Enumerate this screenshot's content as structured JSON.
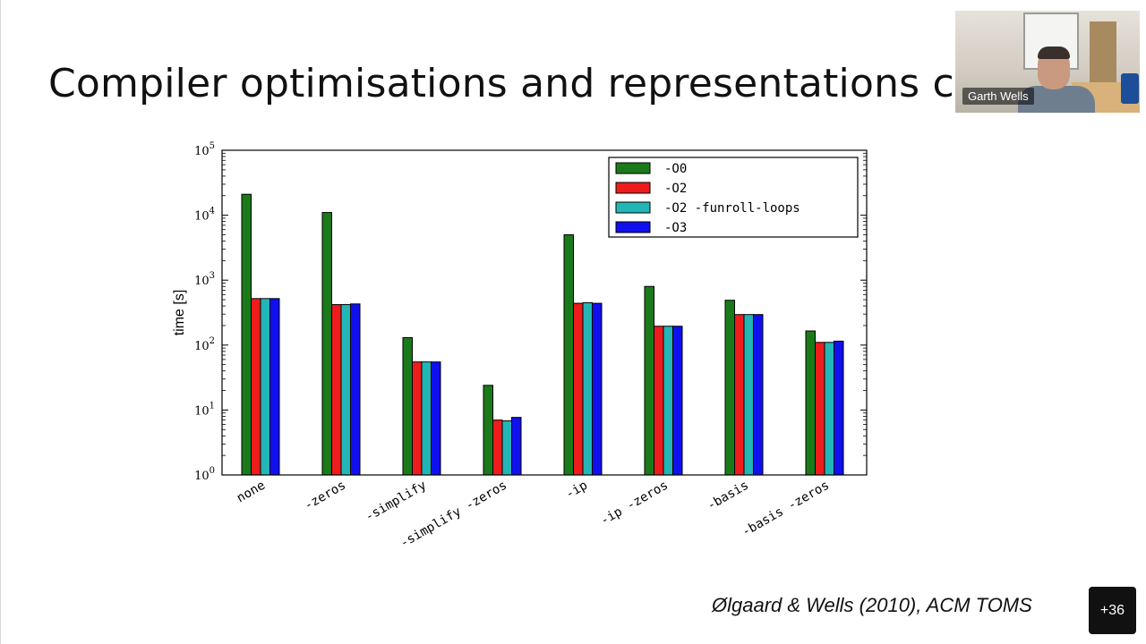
{
  "slide": {
    "title": "Compiler optimisations and representations circ",
    "citation": "Ølgaard & Wells (2010), ACM TOMS"
  },
  "video": {
    "participant_name": "Garth Wells"
  },
  "participants_button": {
    "label": "+36"
  },
  "chart_data": {
    "type": "bar",
    "yscale": "log",
    "ylabel": "time [s]",
    "xlabel": "",
    "ylim": [
      1,
      100000
    ],
    "ytick_labels": [
      {
        "base": "10",
        "exp": "0"
      },
      {
        "base": "10",
        "exp": "1"
      },
      {
        "base": "10",
        "exp": "2"
      },
      {
        "base": "10",
        "exp": "3"
      },
      {
        "base": "10",
        "exp": "4"
      },
      {
        "base": "10",
        "exp": "5"
      }
    ],
    "categories": [
      "none",
      "-zeros",
      "-simplify",
      "-simplify -zeros",
      "-ip",
      "-ip -zeros",
      "-basis",
      "-basis -zeros"
    ],
    "series": [
      {
        "name": "-O0",
        "color": "#1a7a1a",
        "values": [
          21000,
          11000,
          130,
          24,
          5000,
          800,
          490,
          165
        ]
      },
      {
        "name": "-O2",
        "color": "#ee1c1c",
        "values": [
          520,
          420,
          55,
          7,
          440,
          195,
          295,
          110
        ]
      },
      {
        "name": "-O2 -funroll-loops",
        "color": "#22b6b6",
        "values": [
          520,
          420,
          55,
          6.8,
          450,
          195,
          295,
          110
        ]
      },
      {
        "name": "-O3",
        "color": "#1010ee",
        "values": [
          520,
          430,
          55,
          7.7,
          440,
          195,
          295,
          115
        ]
      }
    ],
    "legend_position": "top-right",
    "grid": false
  }
}
